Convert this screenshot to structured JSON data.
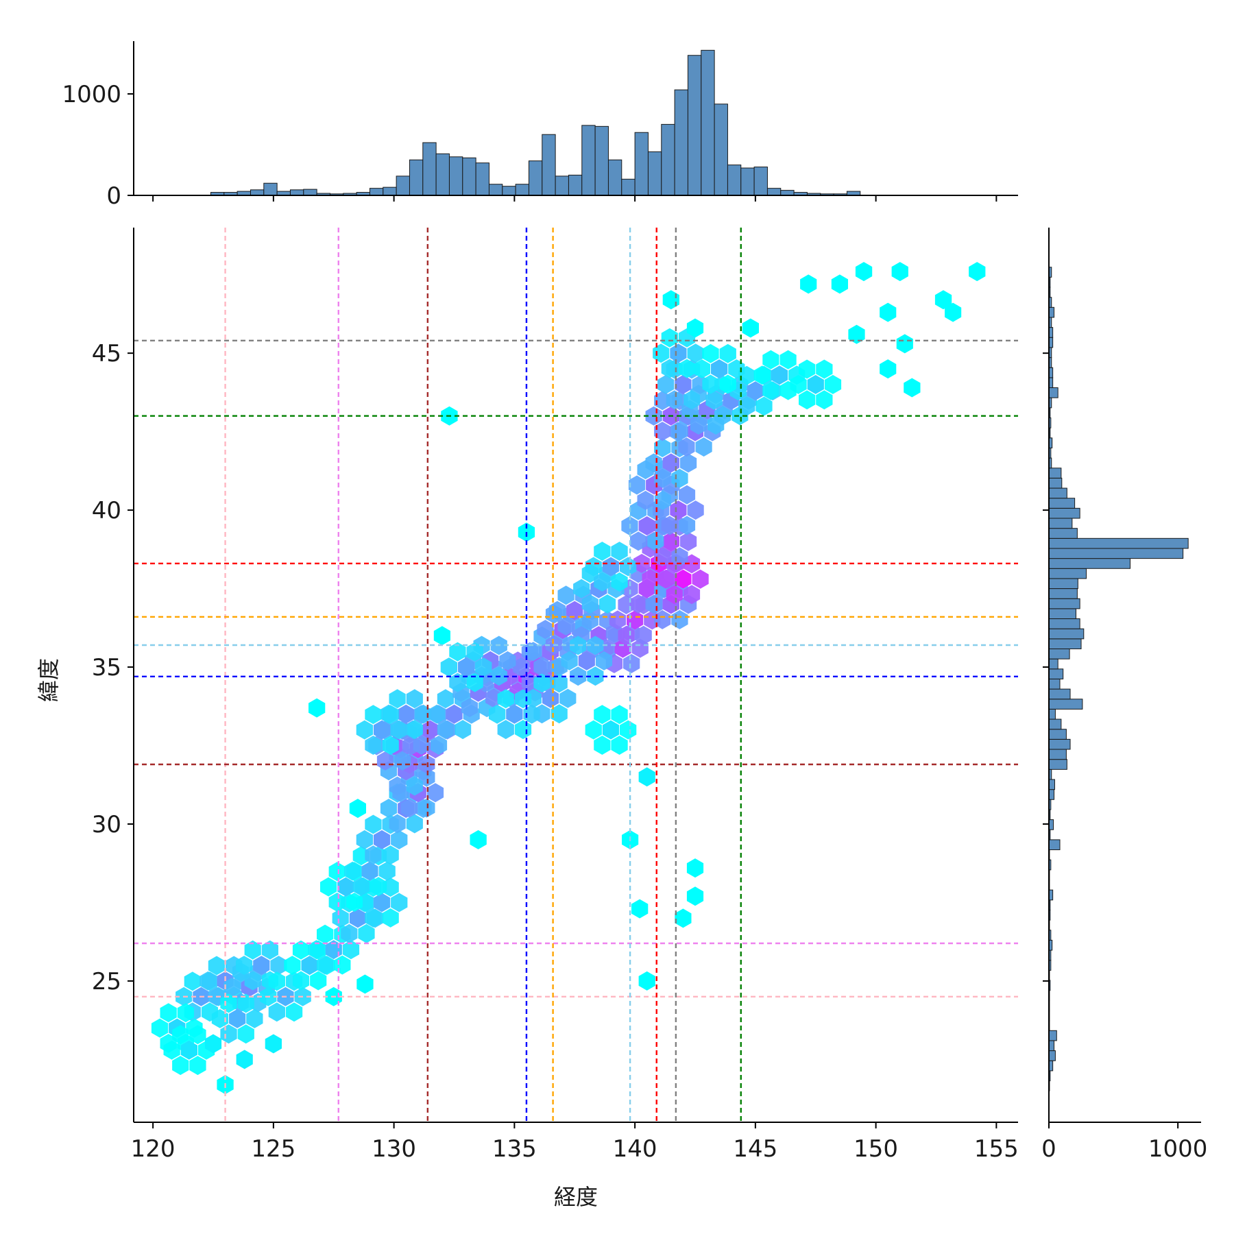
{
  "chart_data": {
    "type": "hexbin",
    "xlabel": "経度",
    "ylabel": "緯度",
    "xlim": [
      119.2,
      155.9
    ],
    "ylim": [
      20.5,
      49.0
    ],
    "x_ticks": [
      120,
      125,
      130,
      135,
      140,
      145,
      150,
      155
    ],
    "y_ticks": [
      25,
      30,
      35,
      40,
      45
    ],
    "colormap": "cool",
    "colors": {
      "hist_bar": "#5a8fc0",
      "hist_edge": "#1a1a1a",
      "axis": "#000000",
      "hex_low": "#00ffff",
      "hex_high": "#ff00ff"
    },
    "reference_lines": [
      {
        "color": "#ffb6c1",
        "lon": 123.0,
        "lat": 24.5
      },
      {
        "color": "#ee82ee",
        "lon": 127.7,
        "lat": 26.2
      },
      {
        "color": "#a52a2a",
        "lon": 131.4,
        "lat": 31.9
      },
      {
        "color": "#0000ff",
        "lon": 135.5,
        "lat": 34.7
      },
      {
        "color": "#ffa500",
        "lon": 136.6,
        "lat": 36.6
      },
      {
        "color": "#87ceeb",
        "lon": 139.8,
        "lat": 35.7
      },
      {
        "color": "#ff0000",
        "lon": 140.9,
        "lat": 38.3
      },
      {
        "color": "#808080",
        "lon": 141.7,
        "lat": 45.4
      },
      {
        "color": "#008000",
        "lon": 144.4,
        "lat": 43.0
      }
    ],
    "hex_density": [
      [
        122.0,
        24.5,
        0.35
      ],
      [
        123.0,
        25.0,
        0.4
      ],
      [
        124.0,
        24.8,
        0.45
      ],
      [
        123.5,
        23.8,
        0.3
      ],
      [
        121.0,
        23.5,
        0.15
      ],
      [
        121.5,
        22.8,
        0.1
      ],
      [
        124.5,
        25.5,
        0.35
      ],
      [
        125.5,
        24.5,
        0.3
      ],
      [
        122.5,
        23.0,
        0.05
      ],
      [
        123.8,
        22.5,
        0.05
      ],
      [
        125.0,
        23.0,
        0.05
      ],
      [
        123.0,
        21.7,
        0.0
      ],
      [
        126.5,
        25.5,
        0.2
      ],
      [
        127.5,
        26.0,
        0.25
      ],
      [
        128.5,
        27.0,
        0.35
      ],
      [
        129.5,
        27.5,
        0.3
      ],
      [
        128.0,
        28.0,
        0.2
      ],
      [
        129.0,
        28.5,
        0.3
      ],
      [
        129.5,
        29.5,
        0.4
      ],
      [
        130.5,
        30.5,
        0.45
      ],
      [
        131.0,
        31.0,
        0.55
      ],
      [
        130.5,
        31.7,
        0.5
      ],
      [
        131.0,
        32.4,
        0.7
      ],
      [
        130.0,
        32.5,
        0.6
      ],
      [
        131.5,
        33.0,
        0.55
      ],
      [
        130.5,
        33.5,
        0.4
      ],
      [
        129.5,
        33.0,
        0.35
      ],
      [
        132.5,
        33.5,
        0.45
      ],
      [
        133.5,
        34.2,
        0.5
      ],
      [
        134.5,
        34.5,
        0.6
      ],
      [
        135.5,
        34.7,
        0.8
      ],
      [
        136.0,
        35.0,
        0.65
      ],
      [
        134.0,
        35.2,
        0.5
      ],
      [
        133.0,
        35.0,
        0.35
      ],
      [
        136.5,
        35.5,
        0.55
      ],
      [
        137.0,
        36.2,
        0.6
      ],
      [
        137.5,
        36.8,
        0.55
      ],
      [
        138.5,
        36.0,
        0.6
      ],
      [
        139.5,
        35.6,
        0.7
      ],
      [
        140.0,
        36.5,
        0.75
      ],
      [
        140.5,
        37.5,
        0.7
      ],
      [
        141.5,
        37.0,
        0.6
      ],
      [
        141.0,
        38.3,
        0.85
      ],
      [
        142.0,
        37.8,
        0.9
      ],
      [
        141.5,
        39.0,
        0.7
      ],
      [
        140.5,
        39.5,
        0.55
      ],
      [
        141.8,
        40.0,
        0.6
      ],
      [
        140.8,
        40.8,
        0.55
      ],
      [
        141.5,
        41.5,
        0.5
      ],
      [
        142.5,
        42.5,
        0.55
      ],
      [
        141.5,
        43.0,
        0.6
      ],
      [
        143.0,
        43.2,
        0.5
      ],
      [
        144.0,
        43.5,
        0.4
      ],
      [
        145.0,
        43.8,
        0.35
      ],
      [
        142.0,
        44.0,
        0.45
      ],
      [
        141.8,
        45.0,
        0.3
      ],
      [
        143.5,
        44.5,
        0.25
      ],
      [
        146.0,
        44.3,
        0.2
      ],
      [
        147.5,
        44.0,
        0.15
      ],
      [
        138.5,
        37.5,
        0.4
      ],
      [
        139.0,
        38.2,
        0.35
      ],
      [
        138.0,
        35.2,
        0.45
      ],
      [
        136.5,
        34.0,
        0.4
      ],
      [
        135.0,
        33.5,
        0.35
      ],
      [
        139.0,
        33.0,
        0.1
      ],
      [
        140.5,
        31.5,
        0.05
      ],
      [
        139.8,
        29.5,
        0.0
      ],
      [
        142.0,
        27.0,
        0.0
      ],
      [
        132.3,
        43.0,
        0.0
      ],
      [
        142.5,
        45.8,
        0.0
      ],
      [
        141.5,
        46.7,
        0.0
      ],
      [
        149.5,
        47.6,
        0.0
      ],
      [
        151.0,
        47.6,
        0.0
      ],
      [
        154.2,
        47.6,
        0.0
      ],
      [
        147.2,
        47.2,
        0.0
      ],
      [
        148.5,
        47.2,
        0.0
      ],
      [
        152.8,
        46.7,
        0.0
      ],
      [
        150.5,
        46.3,
        0.0
      ],
      [
        153.2,
        46.3,
        0.0
      ],
      [
        144.8,
        45.8,
        0.0
      ],
      [
        149.2,
        45.6,
        0.0
      ],
      [
        151.2,
        45.3,
        0.0
      ],
      [
        151.5,
        43.9,
        0.0
      ],
      [
        150.5,
        44.5,
        0.0
      ],
      [
        126.8,
        33.7,
        0.0
      ],
      [
        132.0,
        36.0,
        0.0
      ],
      [
        135.5,
        39.3,
        0.0
      ],
      [
        128.5,
        30.5,
        0.0
      ],
      [
        133.5,
        29.5,
        0.0
      ],
      [
        140.5,
        25.0,
        0.0
      ],
      [
        140.2,
        27.3,
        0.0
      ],
      [
        142.5,
        28.6,
        0.0
      ],
      [
        142.5,
        27.7,
        0.0
      ],
      [
        127.5,
        24.5,
        0.0
      ],
      [
        128.8,
        24.9,
        0.0
      ]
    ],
    "hist_x": {
      "bin_start": 120.2,
      "bin_width": 0.55,
      "counts": [
        0,
        0,
        0,
        0,
        30,
        30,
        40,
        55,
        120,
        40,
        55,
        60,
        20,
        15,
        20,
        30,
        70,
        80,
        190,
        350,
        520,
        410,
        380,
        370,
        320,
        110,
        90,
        110,
        340,
        600,
        190,
        200,
        690,
        680,
        350,
        160,
        620,
        430,
        700,
        1040,
        1380,
        1430,
        900,
        300,
        270,
        280,
        70,
        50,
        30,
        20,
        15,
        15,
        40,
        0,
        0,
        0,
        0,
        0,
        0,
        0,
        0,
        0,
        0,
        0,
        0,
        0
      ]
    },
    "hist_y": {
      "bin_start": 21.5,
      "bin_width": 0.32,
      "counts": [
        5,
        10,
        30,
        50,
        40,
        60,
        5,
        5,
        5,
        5,
        10,
        5,
        15,
        15,
        25,
        15,
        5,
        10,
        10,
        30,
        5,
        5,
        15,
        5,
        85,
        10,
        35,
        10,
        15,
        40,
        45,
        20,
        140,
        135,
        165,
        135,
        95,
        50,
        260,
        165,
        85,
        110,
        70,
        160,
        250,
        270,
        240,
        210,
        240,
        220,
        225,
        290,
        630,
        1040,
        1080,
        220,
        180,
        240,
        200,
        140,
        100,
        95,
        20,
        15,
        25,
        10,
        15,
        10,
        20,
        70,
        30,
        30,
        20,
        20,
        30,
        30,
        20,
        40,
        20,
        10,
        10,
        20
      ]
    }
  }
}
